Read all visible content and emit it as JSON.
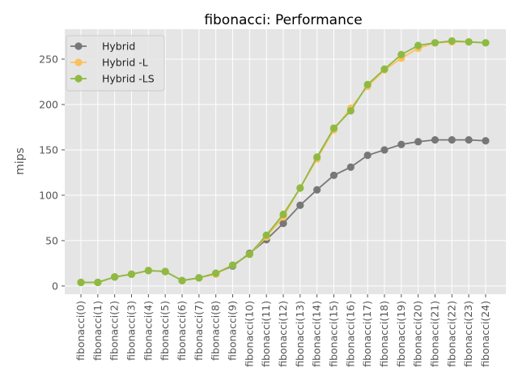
{
  "chart_data": {
    "type": "line",
    "title": "fibonacci: Performance",
    "xlabel": "",
    "ylabel": "mips",
    "categories": [
      "fibonacci(0)",
      "fibonacci(1)",
      "fibonacci(2)",
      "fibonacci(3)",
      "fibonacci(4)",
      "fibonacci(5)",
      "fibonacci(6)",
      "fibonacci(7)",
      "fibonacci(8)",
      "fibonacci(9)",
      "fibonacci(10)",
      "fibonacci(11)",
      "fibonacci(12)",
      "fibonacci(13)",
      "fibonacci(14)",
      "fibonacci(15)",
      "fibonacci(16)",
      "fibonacci(17)",
      "fibonacci(18)",
      "fibonacci(19)",
      "fibonacci(20)",
      "fibonacci(21)",
      "fibonacci(22)",
      "fibonacci(23)",
      "fibonacci(24)"
    ],
    "ylim": [
      -9,
      283
    ],
    "yticks": [
      0,
      50,
      100,
      150,
      200,
      250
    ],
    "grid": true,
    "legend_position": "top-left",
    "series": [
      {
        "name": "Hybrid",
        "color": "#777777",
        "values": [
          4,
          4,
          10,
          13,
          17,
          16,
          6,
          9,
          14,
          22,
          36,
          51,
          69,
          89,
          106,
          122,
          131,
          144,
          150,
          156,
          159,
          161,
          161,
          161,
          160
        ]
      },
      {
        "name": "Hybrid -L",
        "color": "#FBC15E",
        "values": [
          4,
          4,
          10,
          13,
          17,
          16,
          6,
          9,
          13,
          23,
          35,
          54,
          76,
          108,
          140,
          172,
          196,
          220,
          238,
          251,
          262,
          268,
          269,
          269,
          268
        ]
      },
      {
        "name": "Hybrid -LS",
        "color": "#8EBA42",
        "values": [
          4,
          4,
          10,
          13,
          17,
          16,
          6,
          9,
          14,
          23,
          35,
          56,
          79,
          108,
          142,
          174,
          193,
          222,
          239,
          255,
          265,
          268,
          270,
          269,
          268
        ]
      }
    ]
  }
}
